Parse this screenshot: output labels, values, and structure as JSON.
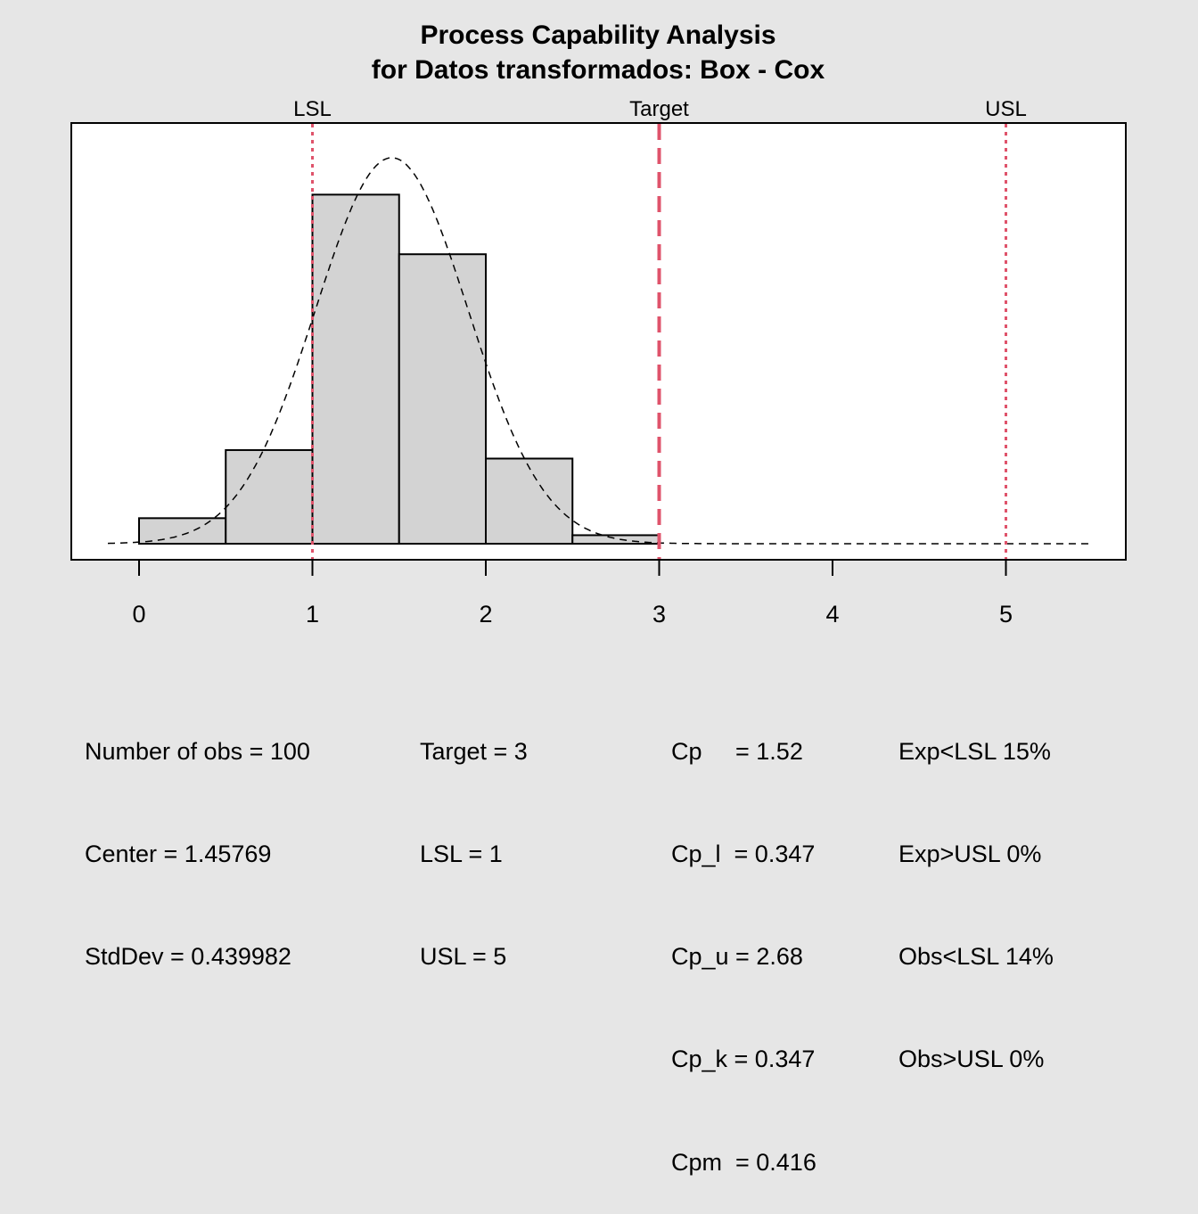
{
  "chart_data": {
    "type": "bar",
    "title": "Process Capability Analysis",
    "subtitle": "for Datos transformados: Box - Cox",
    "xlabel": "",
    "ylabel": "",
    "xlim": [
      -0.4,
      5.67
    ],
    "ylim": [
      -0.038,
      0.988
    ],
    "grid": false,
    "x_ticks": [
      "0",
      "1",
      "2",
      "3",
      "4",
      "5"
    ],
    "bins": [
      [
        0,
        0.5
      ],
      [
        0.5,
        1
      ],
      [
        1,
        1.5
      ],
      [
        1.5,
        2
      ],
      [
        2,
        2.5
      ],
      [
        2.5,
        3
      ]
    ],
    "counts": [
      3,
      11,
      41,
      34,
      10,
      1
    ],
    "density": [
      0.06,
      0.22,
      0.82,
      0.68,
      0.2,
      0.02
    ],
    "normal_curve": {
      "mean": 1.45769,
      "sd": 0.439982,
      "range": [
        -0.18,
        5.5
      ]
    },
    "spec_lines": [
      {
        "name": "LSL",
        "value": 1,
        "style": "dotted"
      },
      {
        "name": "Target",
        "value": 3,
        "style": "dashed"
      },
      {
        "name": "USL",
        "value": 5,
        "style": "dotted"
      }
    ],
    "colors": {
      "bar_fill": "#d3d3d3",
      "spec_line": "#df536b",
      "background": "#e6e6e6",
      "plot_bg": "#ffffff"
    }
  },
  "stats": {
    "col1": [
      "Number of obs = 100",
      "Center = 1.45769",
      "StdDev = 0.439982"
    ],
    "col2": [
      "Target = 3",
      "LSL = 1",
      "USL = 5"
    ],
    "col3": [
      "Cp     = 1.52",
      "Cp_l  = 0.347",
      "Cp_u = 2.68",
      "Cp_k = 0.347",
      "Cpm  = 0.416"
    ],
    "col4": [
      "Exp<LSL 15%",
      "Exp>USL 0%",
      "Obs<LSL 14%",
      "Obs>USL 0%"
    ]
  }
}
